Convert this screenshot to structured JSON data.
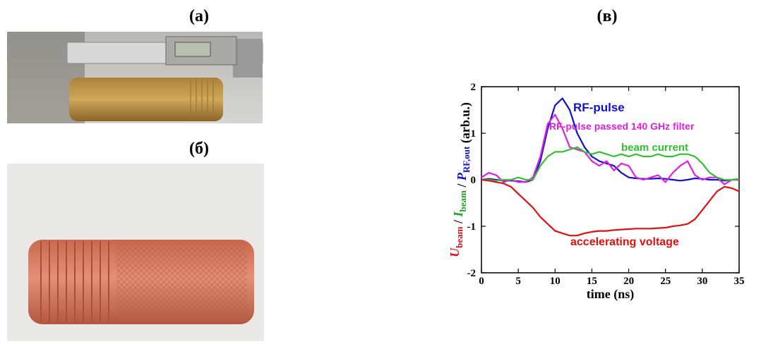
{
  "panels": [
    "(а)",
    "(б)",
    "(в)"
  ],
  "chart_data": {
    "type": "line",
    "xlabel": "time (ns)",
    "ylabel_parts": [
      {
        "text": "U",
        "sub": "beam",
        "color": "#e01010"
      },
      {
        "text": " / ",
        "color": "#000000"
      },
      {
        "text": "I",
        "sub": "beam",
        "color": "#20a020"
      },
      {
        "text": " / ",
        "color": "#000000"
      },
      {
        "text": "P",
        "sub": "RF,out",
        "color": "#1010d0"
      },
      {
        "text": " (arb.u.)",
        "color": "#000000"
      }
    ],
    "x": [
      0,
      1,
      2,
      3,
      4,
      5,
      6,
      7,
      8,
      9,
      10,
      11,
      12,
      13,
      14,
      15,
      16,
      17,
      18,
      19,
      20,
      21,
      22,
      23,
      24,
      25,
      26,
      27,
      28,
      29,
      30,
      31,
      32,
      33,
      34,
      35
    ],
    "xlim": [
      0,
      35
    ],
    "xticks": [
      0,
      5,
      10,
      15,
      20,
      25,
      30,
      35
    ],
    "ylim": [
      -2,
      2
    ],
    "yticks": [
      -2,
      -1,
      0,
      1,
      2
    ],
    "series": [
      {
        "name": "RF-pulse",
        "color": "#1010d0",
        "values": [
          0,
          0.02,
          0,
          -0.02,
          -0.02,
          -0.03,
          -0.05,
          0,
          0.4,
          1.1,
          1.6,
          1.75,
          1.5,
          1.0,
          0.7,
          0.5,
          0.4,
          0.35,
          0.3,
          0.15,
          0.05,
          0.03,
          0.02,
          0.02,
          0.03,
          0.02,
          0,
          -0.02,
          0,
          0.03,
          0.02,
          0,
          0,
          -0.02,
          0,
          0
        ]
      },
      {
        "name": "RF-pulse passed 140 GHz filter",
        "color": "#e020e0",
        "values": [
          0.05,
          0.15,
          0.1,
          -0.05,
          0,
          -0.05,
          -0.05,
          0.05,
          0.5,
          1.2,
          1.4,
          1.1,
          0.7,
          0.65,
          0.6,
          0.4,
          0.3,
          0.4,
          0.2,
          0.35,
          0.3,
          0.05,
          0,
          0.05,
          0.1,
          -0.05,
          0.15,
          0.3,
          0.4,
          0.1,
          0,
          0.05,
          0.05,
          -0.1,
          0,
          0
        ]
      },
      {
        "name": "beam current",
        "color": "#30c030",
        "values": [
          0,
          0,
          -0.02,
          0,
          0,
          0.05,
          0,
          0,
          0.3,
          0.5,
          0.6,
          0.6,
          0.65,
          0.7,
          0.6,
          0.55,
          0.6,
          0.55,
          0.5,
          0.55,
          0.5,
          0.55,
          0.5,
          0.5,
          0.55,
          0.5,
          0.5,
          0.55,
          0.55,
          0.5,
          0.35,
          0.15,
          0.05,
          0,
          0,
          0.02
        ]
      },
      {
        "name": "accelerating voltage",
        "color": "#e01010",
        "values": [
          0,
          -0.02,
          -0.05,
          -0.08,
          -0.15,
          -0.3,
          -0.45,
          -0.6,
          -0.8,
          -0.95,
          -1.1,
          -1.15,
          -1.2,
          -1.2,
          -1.15,
          -1.12,
          -1.1,
          -1.1,
          -1.08,
          -1.07,
          -1.06,
          -1.05,
          -1.05,
          -1.05,
          -1.04,
          -1.03,
          -1.0,
          -0.98,
          -0.95,
          -0.85,
          -0.65,
          -0.45,
          -0.25,
          -0.15,
          -0.18,
          -0.25
        ]
      }
    ]
  }
}
